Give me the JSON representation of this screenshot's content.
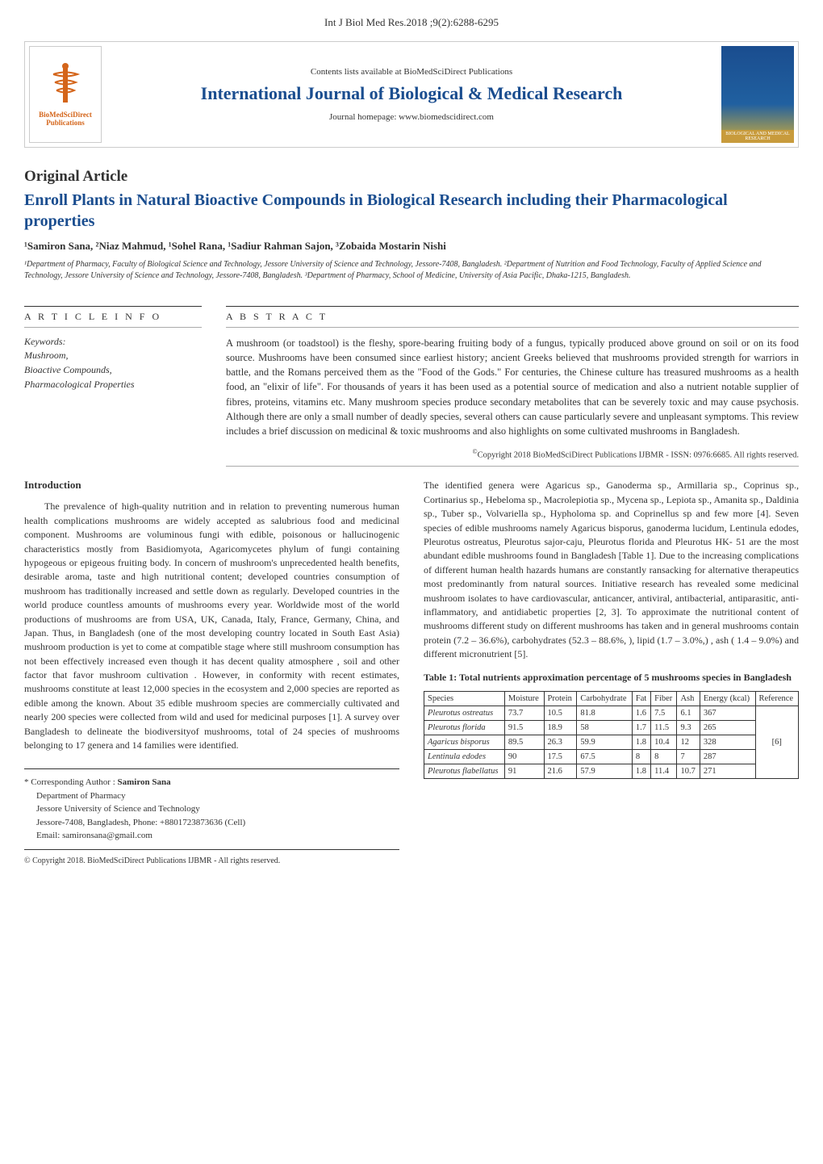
{
  "colors": {
    "journal_title": "#1a4d8f",
    "article_title": "#1a4d8f",
    "body_text": "#333333",
    "logo_text": "#d4651a",
    "background": "#ffffff",
    "border_dark": "#333333",
    "border_light": "#aaaaaa",
    "logo_right_top": "#1a4d8f",
    "logo_right_accent": "#d4af37"
  },
  "fonts": {
    "body_family": "Times New Roman",
    "journal_title_size": 22,
    "article_title_size": 20,
    "body_size": 12,
    "abstract_size": 12.5,
    "affiliation_size": 10,
    "table_size": 10.5
  },
  "header": {
    "citation": "Int J Biol Med Res.2018 ;9(2):6288-6295",
    "contents_line": "Contents lists available at BioMedSciDirect Publications",
    "journal_title": "International Journal of Biological & Medical Research",
    "homepage": "Journal homepage: www.biomedscidirect.com",
    "logo_left_line1": "BioMedSciDirect",
    "logo_left_line2": "Publications",
    "logo_right_bottom": "BIOLOGICAL AND MEDICAL RESEARCH"
  },
  "article": {
    "type": "Original Article",
    "title": "Enroll Plants in Natural Bioactive Compounds in Biological Research including their Pharmacological properties",
    "authors_html": "¹Samiron Sana, ²Niaz Mahmud, ¹Sohel Rana, ¹Sadiur Rahman Sajon, ³Zobaida Mostarin Nishi",
    "affiliations": "¹Department of Pharmacy, Faculty of Biological Science and Technology, Jessore University of Science and Technology, Jessore-7408, Bangladesh. ²Department of Nutrition and Food Technology, Faculty of Applied Science and Technology, Jessore University of Science and Technology, Jessore-7408, Bangladesh. ³Department of Pharmacy, School of Medicine, University of Asia Pacific, Dhaka-1215, Bangladesh."
  },
  "info": {
    "header": "A R T I C L E  I N F O",
    "keywords_label": "Keywords:",
    "keywords": [
      "Mushroom,",
      "Bioactive Compounds,",
      "Pharmacological Properties"
    ]
  },
  "abstract": {
    "header": "A B S T R A C T",
    "text": "A mushroom (or toadstool) is the fleshy, spore-bearing fruiting body of a fungus, typically produced above ground on soil or on its food source. Mushrooms have been consumed since earliest history; ancient Greeks believed that mushrooms provided strength for warriors in battle, and the Romans perceived them as the \"Food of the Gods.\" For centuries, the Chinese culture has treasured mushrooms as a health food, an \"elixir of life\". For thousands of years it has been used as a potential source of medication and also a nutrient notable supplier of fibres, proteins, vitamins etc. Many mushroom species produce secondary metabolites that can be severely toxic and may cause psychosis. Although there are only a small number of deadly species, several others can cause particularly severe and unpleasant symptoms. This review includes a brief discussion on medicinal & toxic mushrooms and also highlights on some cultivated mushrooms in Bangladesh.",
    "copyright": "Copyright 2018 BioMedSciDirect Publications IJBMR - ISSN:  0976:6685.  All rights reserved."
  },
  "intro": {
    "heading": "Introduction",
    "left_text": "The prevalence of high-quality nutrition and in relation to preventing numerous human health complications mushrooms are widely accepted as salubrious food and medicinal component. Mushrooms are voluminous fungi with edible, poisonous or hallucinogenic characteristics mostly from Basidiomyota, Agaricomycetes phylum of fungi containing hypogeous or epigeous fruiting body. In concern of mushroom's unprecedented health benefits, desirable aroma, taste and high nutritional content; developed countries consumption of mushroom has traditionally increased and settle down as regularly. Developed countries in the world produce countless amounts of mushrooms every year. Worldwide most of the world productions of mushrooms are from USA, UK, Canada, Italy, France, Germany, China, and Japan. Thus, in Bangladesh (one of the most developing country located in South East Asia) mushroom production is yet to come at compatible stage where still mushroom consumption has not been effectively increased even though it has decent quality atmosphere , soil and other factor that favor mushroom cultivation . However, in conformity with recent estimates, mushrooms constitute at least 12,000 species in the ecosystem and 2,000 species are reported as edible among the known. About 35 edible mushroom species are commercially cultivated and nearly 200 species were collected from wild and used for medicinal purposes [1]. A survey over Bangladesh to delineate the biodiversityof mushrooms, total of 24 species of mushrooms belonging to 17 genera and 14 families were identified.",
    "right_text": "The identified genera were Agaricus sp., Ganoderma sp., Armillaria sp., Coprinus sp., Cortinarius sp., Hebeloma sp., Macrolepiotia sp., Mycena sp., Lepiota sp., Amanita sp., Daldinia sp., Tuber sp., Volvariella sp., Hypholoma sp. and Coprinellus sp and few more [4]. Seven species of edible mushrooms namely Agaricus bisporus, ganoderma lucidum, Lentinula edodes, Pleurotus ostreatus, Pleurotus sajor-caju, Pleurotus florida and Pleurotus HK- 51 are the most abundant edible mushrooms found in Bangladesh [Table 1]. Due to the increasing complications of different human health hazards humans are constantly ransacking for alternative therapeutics most predominantly from natural sources. Initiative research has revealed some medicinal mushroom isolates to have cardiovascular, anticancer, antiviral, antibacterial, antiparasitic, anti-inflammatory, and antidiabetic properties [2, 3].  To approximate the nutritional content of mushrooms different study on different mushrooms has taken and in general mushrooms contain protein (7.2 – 36.6%), carbohydrates (52.3 – 88.6%, ), lipid (1.7 – 3.0%,) , ash ( 1.4 – 9.0%) and different micronutrient [5]."
  },
  "corresponding": {
    "label": "* Corresponding Author :  ",
    "name": "Samiron Sana",
    "line1": "Department of Pharmacy",
    "line2": "Jessore University of Science and Technology",
    "line3": "Jessore-7408, Bangladesh, Phone: +8801723873636 (Cell)",
    "line4": "Email: samironsana@gmail.com",
    "bottom_copyright": "© Copyright 2018. BioMedSciDirect Publications IJBMR - All rights reserved."
  },
  "table1": {
    "caption": "Table 1: Total nutrients approximation percentage of 5 mushrooms species in Bangladesh",
    "columns": [
      "Species",
      "Moisture",
      "Protein",
      "Carbohydrate",
      "Fat",
      "Fiber",
      "Ash",
      "Energy (kcal)",
      "Reference"
    ],
    "col_widths": [
      "18%",
      "11%",
      "10%",
      "13%",
      "7%",
      "9%",
      "8%",
      "12%",
      "10%"
    ],
    "rows": [
      [
        "Pleurotus ostreatus",
        "73.7",
        "10.5",
        "81.8",
        "1.6",
        "7.5",
        "6.1",
        "367",
        ""
      ],
      [
        "Pleurotus florida",
        "91.5",
        "18.9",
        "58",
        "1.7",
        "11.5",
        "9.3",
        "265",
        "[6]"
      ],
      [
        "Agaricus bisporus",
        "89.5",
        "26.3",
        "59.9",
        "1.8",
        "10.4",
        "12",
        "328",
        ""
      ],
      [
        "Lentinula edodes",
        "90",
        "17.5",
        "67.5",
        "8",
        "8",
        "7",
        "287",
        ""
      ],
      [
        "Pleurotus flabellatus",
        "91",
        "21.6",
        "57.9",
        "1.8",
        "11.4",
        "10.7",
        "271",
        ""
      ]
    ],
    "reference_rowspan": 5,
    "border_color": "#333333"
  }
}
